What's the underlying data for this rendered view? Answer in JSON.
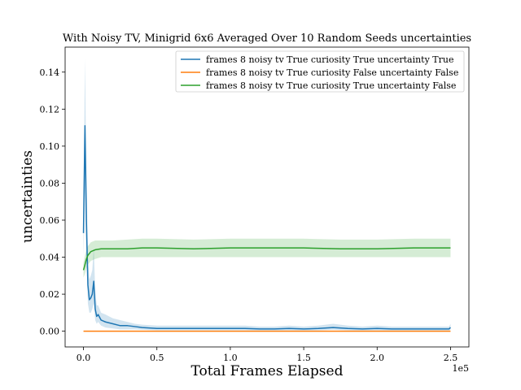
{
  "chart_data": {
    "type": "line",
    "title": "With Noisy TV, Minigrid 6x6 Averaged Over 10 Random Seeds uncertainties",
    "xlabel": "Total Frames Elapsed",
    "ylabel": "uncertainties",
    "x_offset_label": "1e5",
    "xlim": [
      -12500,
      262500
    ],
    "ylim": [
      -0.0085,
      0.1535
    ],
    "x_ticks": [
      0,
      50000,
      100000,
      150000,
      200000,
      250000
    ],
    "x_tick_labels": [
      "0.0",
      "0.5",
      "1.0",
      "1.5",
      "2.0",
      "2.5"
    ],
    "y_ticks": [
      0.0,
      0.02,
      0.04,
      0.06,
      0.08,
      0.1,
      0.12,
      0.14
    ],
    "y_tick_labels": [
      "0.00",
      "0.02",
      "0.04",
      "0.06",
      "0.08",
      "0.10",
      "0.12",
      "0.14"
    ],
    "grid": false,
    "legend_position": "top-right",
    "series": [
      {
        "name": "frames 8 noisy tv True curiosity True uncertainty True",
        "color": "#1f77b4",
        "x": [
          0,
          1000,
          2000,
          3000,
          4000,
          5000,
          6000,
          7000,
          8000,
          9000,
          10000,
          12000,
          15000,
          20000,
          25000,
          30000,
          35000,
          40000,
          50000,
          60000,
          70000,
          80000,
          90000,
          100000,
          110000,
          120000,
          130000,
          140000,
          150000,
          160000,
          170000,
          180000,
          190000,
          200000,
          210000,
          220000,
          230000,
          240000,
          249000,
          250000
        ],
        "y": [
          0.053,
          0.111,
          0.06,
          0.025,
          0.017,
          0.018,
          0.02,
          0.027,
          0.012,
          0.008,
          0.009,
          0.006,
          0.005,
          0.004,
          0.003,
          0.003,
          0.0025,
          0.002,
          0.0015,
          0.0015,
          0.0015,
          0.0015,
          0.0015,
          0.0015,
          0.0015,
          0.0012,
          0.0012,
          0.0015,
          0.0012,
          0.0015,
          0.002,
          0.0015,
          0.0012,
          0.0015,
          0.0012,
          0.0012,
          0.0012,
          0.0012,
          0.0012,
          0.002
        ],
        "lower": [
          0.04,
          0.075,
          0.04,
          0.015,
          0.01,
          0.01,
          0.012,
          0.015,
          0.006,
          0.004,
          0.005,
          0.003,
          0.002,
          0.0015,
          0.001,
          0.001,
          0.001,
          0.0008,
          0.0005,
          0.0005,
          0.0005,
          0.0005,
          0.0005,
          0.0005,
          0.0005,
          0.0004,
          0.0004,
          0.0005,
          0.0004,
          0.0005,
          0.0008,
          0.0005,
          0.0004,
          0.0005,
          0.0004,
          0.0004,
          0.0004,
          0.0004,
          0.0004,
          0.0008
        ],
        "upper": [
          0.066,
          0.147,
          0.085,
          0.04,
          0.028,
          0.03,
          0.033,
          0.045,
          0.022,
          0.014,
          0.014,
          0.01,
          0.009,
          0.007,
          0.006,
          0.005,
          0.004,
          0.0035,
          0.003,
          0.003,
          0.003,
          0.003,
          0.003,
          0.003,
          0.003,
          0.0025,
          0.0025,
          0.003,
          0.0025,
          0.003,
          0.004,
          0.003,
          0.0025,
          0.003,
          0.0025,
          0.0025,
          0.0025,
          0.0025,
          0.0025,
          0.004
        ]
      },
      {
        "name": "frames 8 noisy tv True curiosity False uncertainty False",
        "color": "#ff7f0e",
        "x": [
          0,
          250000
        ],
        "y": [
          0.0,
          0.0
        ]
      },
      {
        "name": "frames 8 noisy tv True curiosity True uncertainty False",
        "color": "#2ca02c",
        "x": [
          0,
          1000,
          2000,
          3000,
          5000,
          8000,
          12000,
          20000,
          30000,
          40000,
          50000,
          75000,
          100000,
          125000,
          150000,
          175000,
          200000,
          225000,
          250000
        ],
        "y": [
          0.033,
          0.036,
          0.039,
          0.041,
          0.043,
          0.044,
          0.0445,
          0.0445,
          0.0445,
          0.045,
          0.045,
          0.0445,
          0.045,
          0.045,
          0.045,
          0.0445,
          0.0445,
          0.045,
          0.045
        ],
        "lower": [
          0.029,
          0.031,
          0.034,
          0.036,
          0.038,
          0.039,
          0.04,
          0.04,
          0.04,
          0.04,
          0.04,
          0.04,
          0.04,
          0.04,
          0.04,
          0.04,
          0.04,
          0.04,
          0.04
        ],
        "upper": [
          0.037,
          0.041,
          0.044,
          0.046,
          0.048,
          0.049,
          0.049,
          0.049,
          0.0495,
          0.05,
          0.05,
          0.0495,
          0.05,
          0.05,
          0.05,
          0.0495,
          0.0495,
          0.05,
          0.05
        ]
      }
    ]
  }
}
